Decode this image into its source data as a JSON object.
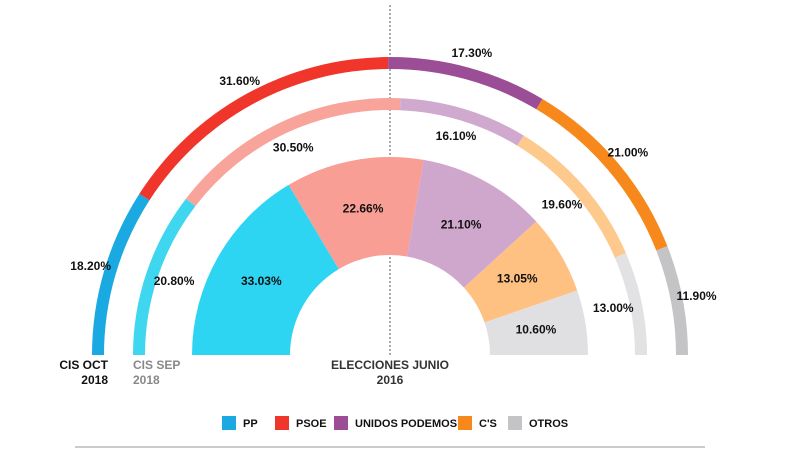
{
  "chart_data": {
    "type": "semidonut",
    "categories": [
      "PP",
      "PSOE",
      "UNIDOS PODEMOS",
      "C'S",
      "OTROS"
    ],
    "colors": [
      "#1aa9e0",
      "#f0352a",
      "#9b4d96",
      "#f7891c",
      "#c4c4c6"
    ],
    "series": [
      {
        "name": "CIS OCT 2018",
        "colors": [
          "#1aa9e0",
          "#f0352a",
          "#9b4d96",
          "#f7891c",
          "#c4c4c6"
        ],
        "values": [
          18.2,
          31.6,
          17.3,
          21.0,
          11.9
        ],
        "value_labels": [
          "18.20%",
          "31.60%",
          "17.30%",
          "21.00%",
          "11.90%"
        ]
      },
      {
        "name": "CIS SEP 2018",
        "colors": [
          "#3fd6f0",
          "#f8a49b",
          "#d0a9cf",
          "#fdc98c",
          "#e2e2e4"
        ],
        "values": [
          20.8,
          30.5,
          16.1,
          19.6,
          13.0
        ],
        "value_labels": [
          "20.80%",
          "30.50%",
          "16.10%",
          "19.60%",
          "13.00%"
        ]
      },
      {
        "name": "ELECCIONES JUNIO 2016",
        "colors": [
          "#2ed5f2",
          "#f99e95",
          "#cfa7cd",
          "#fec181",
          "#e0e0e2"
        ],
        "values": [
          33.03,
          22.66,
          21.1,
          13.05,
          10.6
        ],
        "value_labels": [
          "33.03%",
          "22.66%",
          "21.10%",
          "13.05%",
          "10.60%"
        ]
      }
    ]
  }
}
